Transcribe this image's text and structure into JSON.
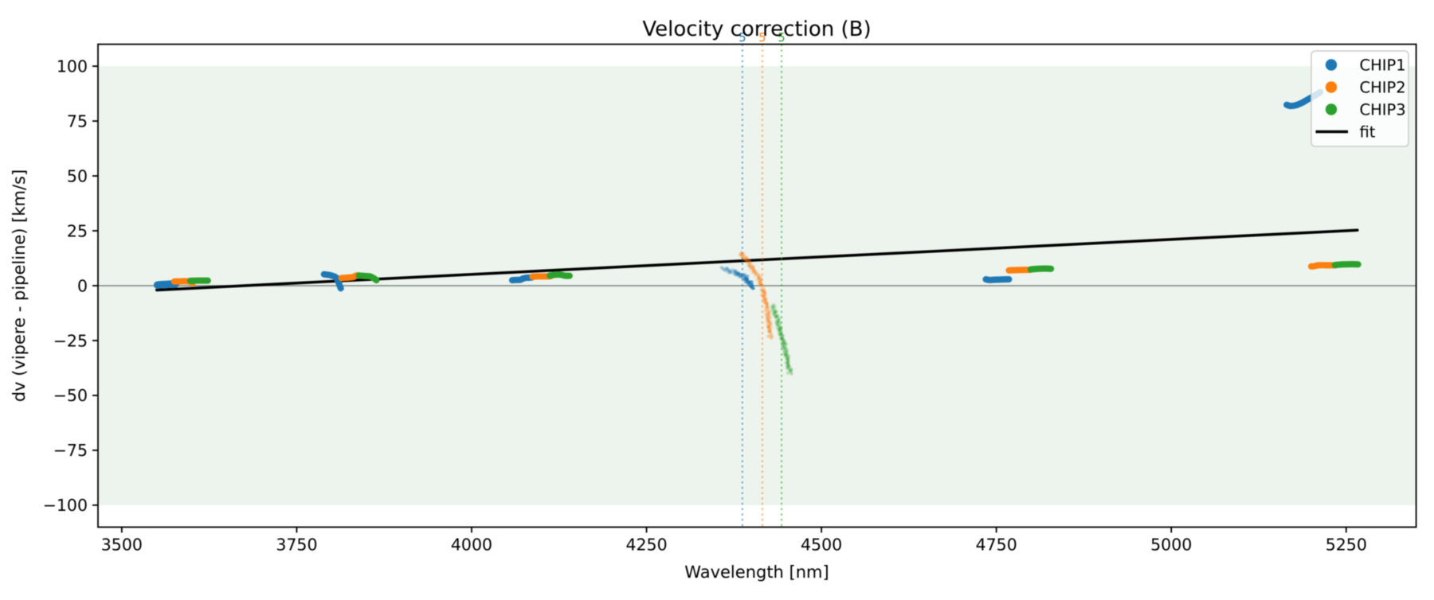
{
  "chart_data": {
    "type": "scatter",
    "title": "Velocity correction (B)",
    "xlabel": "Wavelength [nm]",
    "ylabel": "dv (vipere - pipeline) [km/s]",
    "xlim": [
      3466,
      5350
    ],
    "ylim": [
      -110,
      110
    ],
    "xticks": [
      3500,
      3750,
      4000,
      4250,
      4500,
      4750,
      5000,
      5250
    ],
    "yticks": [
      -100,
      -75,
      -50,
      -25,
      0,
      25,
      50,
      75,
      100
    ],
    "grid": false,
    "background_band": {
      "ymin": -100,
      "ymax": 100,
      "color": "#ecf4ed"
    },
    "zero_line": {
      "y": 0,
      "color": "#808080"
    },
    "fit": {
      "label": "fit",
      "color": "#000000",
      "points": [
        [
          3550,
          -2.0
        ],
        [
          5266,
          25.3
        ]
      ]
    },
    "order_markers": [
      {
        "label": "5",
        "x": 4387.0,
        "color": "#1f77b4"
      },
      {
        "label": "5",
        "x": 4415.5,
        "color": "#ff7f0e"
      },
      {
        "label": "5",
        "x": 4443.0,
        "color": "#2ca02c"
      }
    ],
    "legend": {
      "position": "upper right",
      "entries": [
        "CHIP1",
        "CHIP2",
        "CHIP3",
        "fit"
      ]
    },
    "series": [
      {
        "name": "CHIP1",
        "color": "#1f77b4",
        "segments": [
          {
            "points": [
              [
                3551,
                0.3
              ],
              [
                3558,
                0.5
              ],
              [
                3565,
                0.6
              ],
              [
                3571,
                0.7
              ],
              [
                3577,
                0.8
              ]
            ],
            "width": 9.5
          },
          {
            "points": [
              [
                3789,
                5.2
              ],
              [
                3796,
                4.9
              ],
              [
                3802,
                4.4
              ],
              [
                3806,
                3.8
              ],
              [
                3809,
                2.2
              ],
              [
                3811,
                0.4
              ],
              [
                3813,
                -1.2
              ]
            ]
          },
          {
            "points": [
              [
                4058,
                2.5
              ],
              [
                4064,
                2.6
              ],
              [
                4070,
                2.7
              ],
              [
                4073,
                3.2
              ],
              [
                4078,
                3.6
              ],
              [
                4086,
                3.7
              ]
            ]
          },
          {
            "faded": true,
            "alpha": [
              0.09,
              0.55
            ],
            "alpha_pow": 1.7,
            "points": [
              [
                4358,
                8.0
              ],
              [
                4368,
                6.9
              ],
              [
                4377,
                5.8
              ],
              [
                4385,
                4.6
              ],
              [
                4391,
                3.4
              ],
              [
                4396,
                1.8
              ],
              [
                4399,
                0.3
              ],
              [
                4400.5,
                -0.6
              ]
            ]
          },
          {
            "points": [
              [
                4735,
                2.9
              ],
              [
                4740,
                2.6
              ],
              [
                4747,
                2.7
              ],
              [
                4757,
                2.8
              ],
              [
                4768,
                2.9
              ]
            ]
          },
          {
            "points": [
              [
                5165,
                82.4
              ],
              [
                5170,
                81.9
              ],
              [
                5177,
                82.1
              ],
              [
                5186,
                83.2
              ],
              [
                5196,
                85.0
              ],
              [
                5205,
                86.6
              ],
              [
                5213,
                88.2
              ]
            ]
          }
        ]
      },
      {
        "name": "CHIP2",
        "color": "#ff7f0e",
        "segments": [
          {
            "points": [
              [
                3575,
                1.9
              ],
              [
                3585,
                2.0
              ],
              [
                3594,
                2.0
              ],
              [
                3599,
                1.8
              ],
              [
                3601,
                1.1
              ]
            ]
          },
          {
            "points": [
              [
                3814,
                3.5
              ],
              [
                3820,
                3.6
              ],
              [
                3827,
                3.8
              ],
              [
                3831,
                3.9
              ],
              [
                3834,
                4.5
              ],
              [
                3838,
                4.7
              ]
            ]
          },
          {
            "points": [
              [
                4087,
                4.1
              ],
              [
                4095,
                4.2
              ],
              [
                4105,
                4.2
              ],
              [
                4113,
                4.3
              ]
            ]
          },
          {
            "faded": true,
            "alpha": [
              0.13,
              0.13
            ],
            "points": [
              [
                4384,
                15.0
              ],
              [
                4390,
                12.7
              ],
              [
                4396,
                10.4
              ],
              [
                4402,
                7.7
              ],
              [
                4408,
                4.7
              ],
              [
                4413,
                1.0
              ],
              [
                4417,
                -3.2
              ],
              [
                4420.5,
                -8.0
              ],
              [
                4423.5,
                -13.5
              ],
              [
                4425.5,
                -18.5
              ],
              [
                4427,
                -23.8
              ]
            ]
          },
          {
            "points": [
              [
                4768,
                7.0
              ],
              [
                4780,
                7.1
              ],
              [
                4790,
                7.2
              ],
              [
                4798,
                7.2
              ]
            ]
          },
          {
            "points": [
              [
                5200,
                8.8
              ],
              [
                5205,
                8.9
              ],
              [
                5210,
                9.3
              ],
              [
                5222,
                9.3
              ],
              [
                5235,
                9.3
              ]
            ]
          }
        ]
      },
      {
        "name": "CHIP3",
        "color": "#2ca02c",
        "segments": [
          {
            "points": [
              [
                3598,
                2.2
              ],
              [
                3608,
                2.3
              ],
              [
                3616,
                2.3
              ],
              [
                3623,
                2.3
              ]
            ]
          },
          {
            "points": [
              [
                3839,
                4.6
              ],
              [
                3848,
                4.4
              ],
              [
                3855,
                4.2
              ],
              [
                3860,
                3.4
              ],
              [
                3864,
                2.5
              ]
            ]
          },
          {
            "points": [
              [
                4112,
                4.6
              ],
              [
                4119,
                5.0
              ],
              [
                4127,
                5.0
              ],
              [
                4134,
                4.5
              ],
              [
                4140,
                4.5
              ]
            ]
          },
          {
            "faded": true,
            "alpha": [
              0.14,
              0.15
            ],
            "points": [
              [
                4431,
                -9.5
              ],
              [
                4436,
                -14.5
              ],
              [
                4441,
                -20.0
              ],
              [
                4446,
                -26.5
              ],
              [
                4451,
                -33.0
              ],
              [
                4455,
                -40.0
              ]
            ]
          },
          {
            "points": [
              [
                4799,
                7.4
              ],
              [
                4810,
                7.7
              ],
              [
                4820,
                7.8
              ],
              [
                4828,
                7.7
              ]
            ]
          },
          {
            "points": [
              [
                5234,
                9.4
              ],
              [
                5245,
                9.7
              ],
              [
                5258,
                9.8
              ],
              [
                5267,
                9.7
              ]
            ]
          }
        ]
      }
    ]
  }
}
